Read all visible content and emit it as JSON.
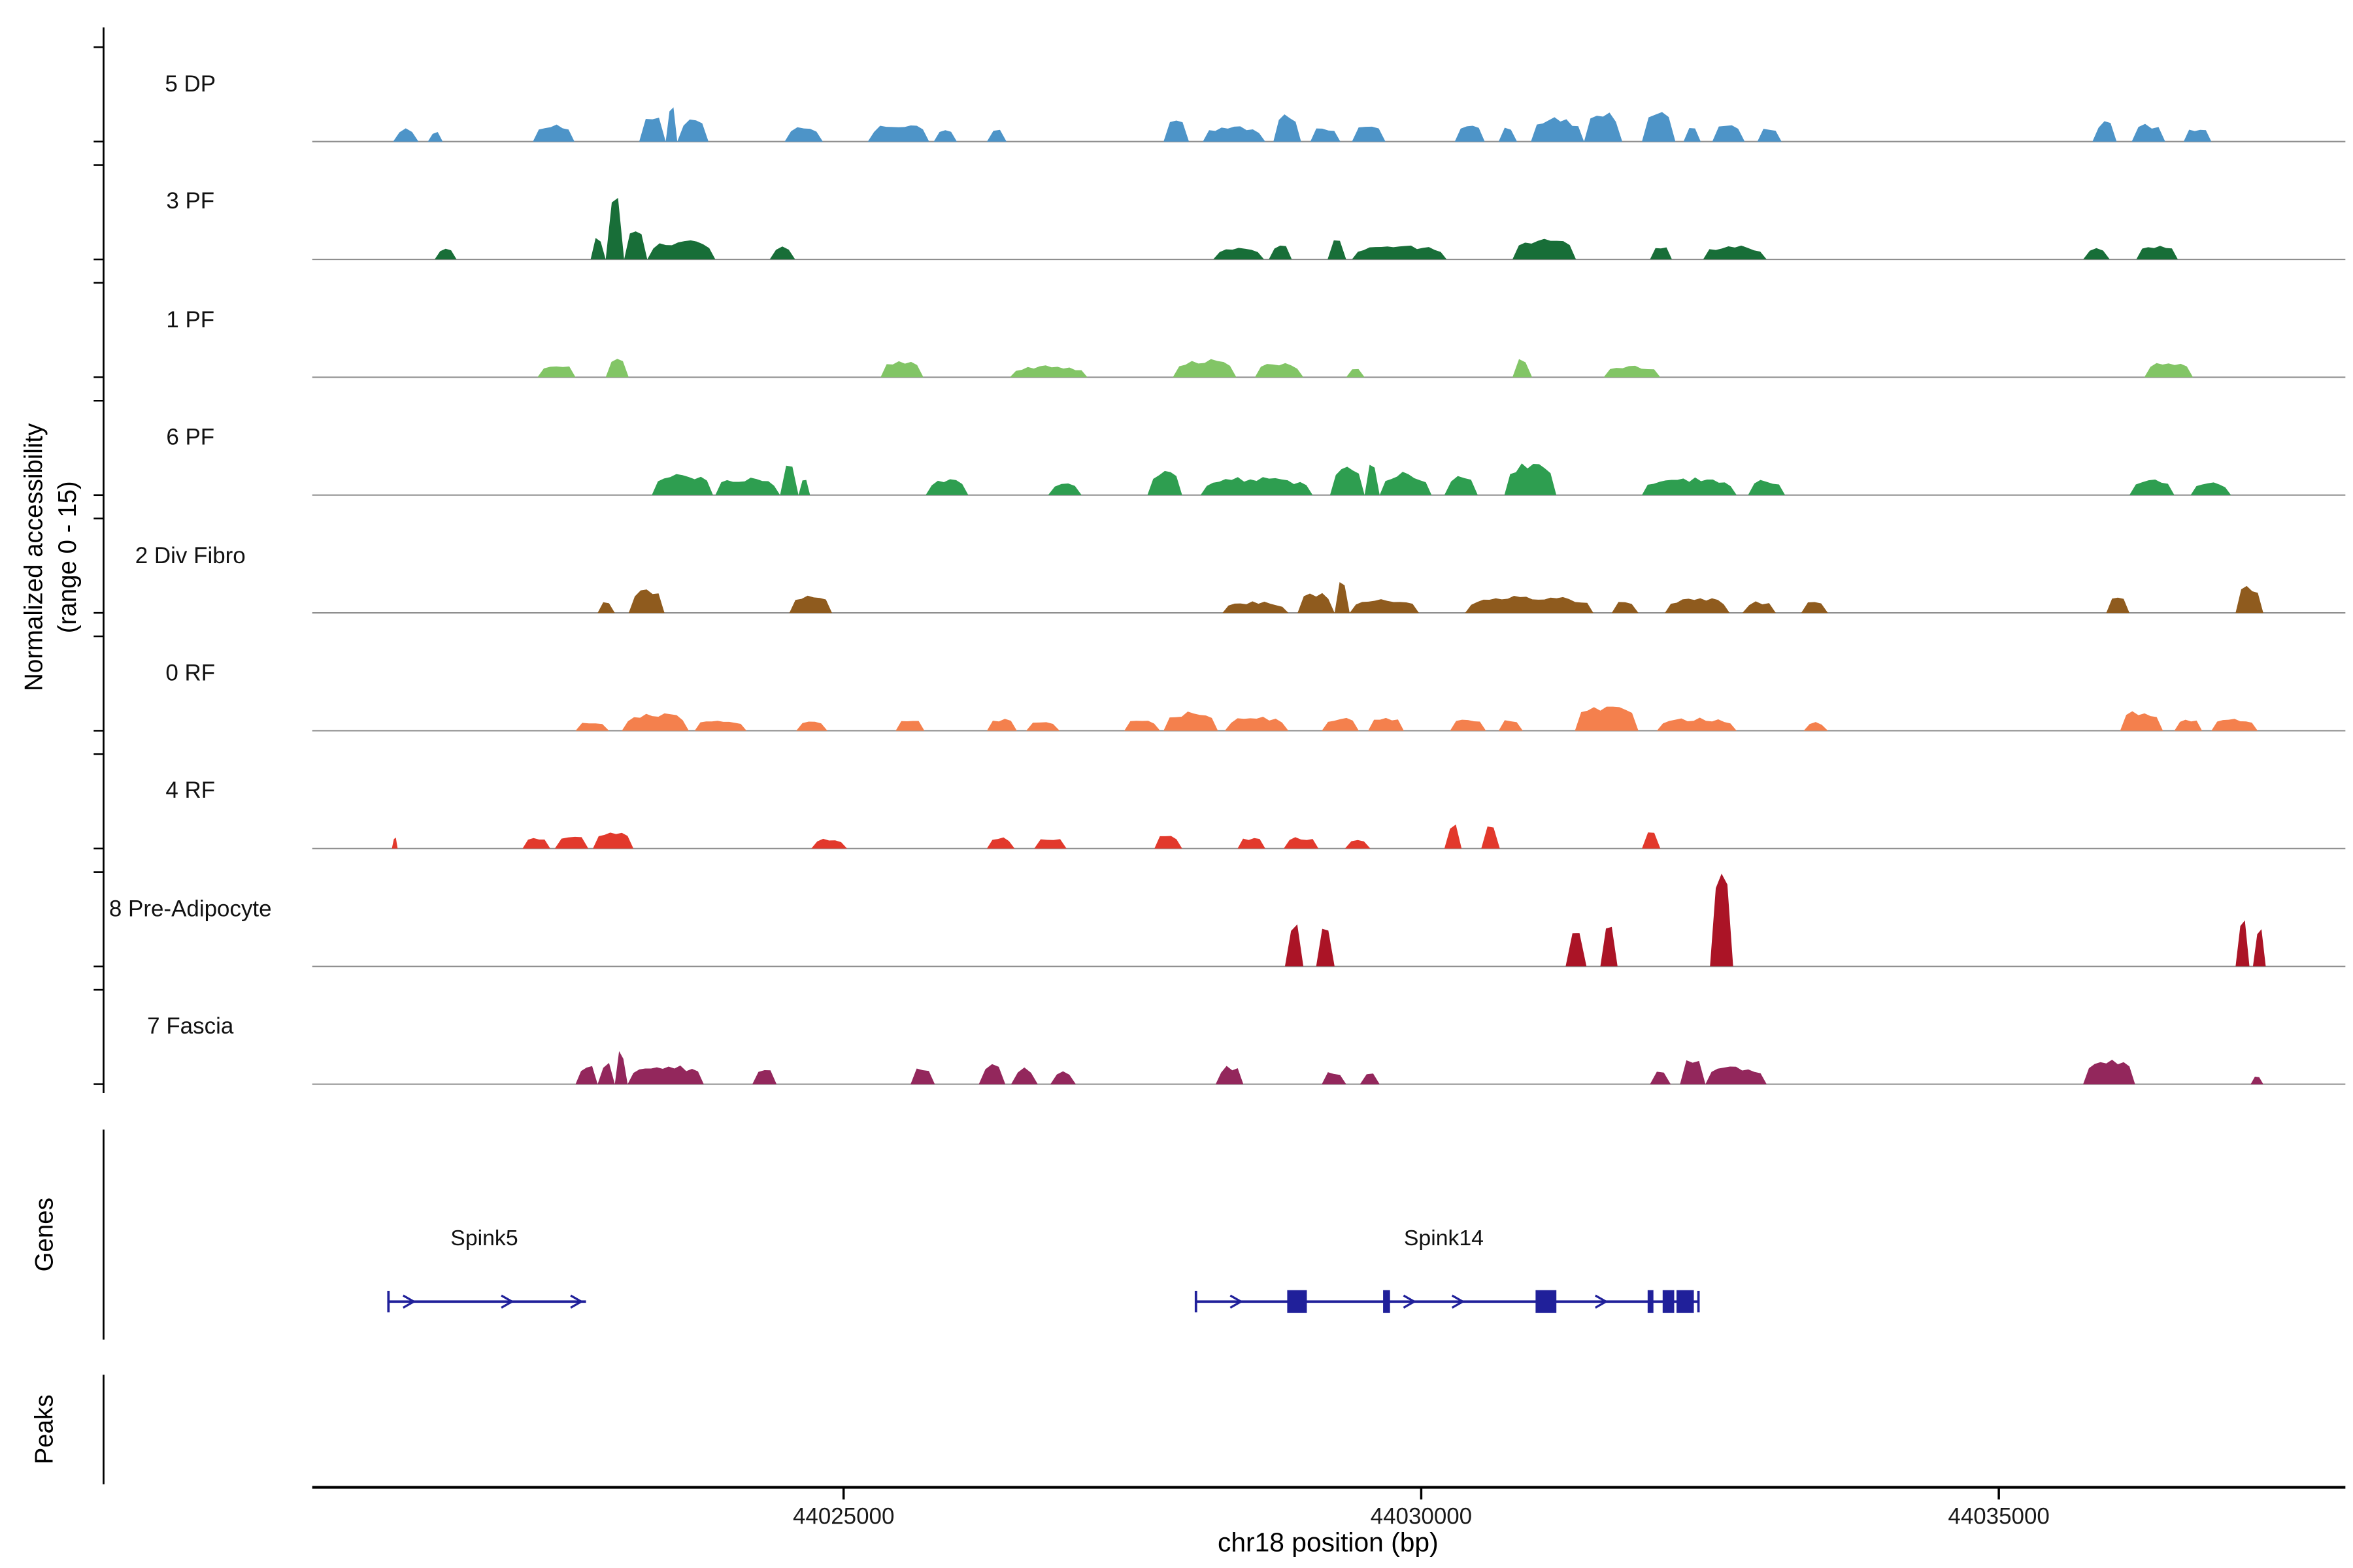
{
  "figure": {
    "y_axis_label_line1": "Normalized accessibility",
    "y_axis_label_line2": "(range 0 - 15)",
    "genes_section_label": "Genes",
    "peaks_section_label": "Peaks",
    "x_axis_title": "chr18 position (bp)"
  },
  "chart_data": {
    "type": "area",
    "title": "",
    "xlabel": "chr18 position (bp)",
    "ylabel": "Normalized accessibility (range 0 - 15)",
    "xlim": [
      44020400,
      44038000
    ],
    "track_ylim": [
      0,
      15
    ],
    "grid": false,
    "x_ticks": [
      {
        "value": 44025000,
        "label": "44025000"
      },
      {
        "value": 44030000,
        "label": "44030000"
      },
      {
        "value": 44035000,
        "label": "44035000"
      }
    ],
    "gene_color": "#20209a",
    "baseline_color": "#8f8f8f",
    "tracks": [
      {
        "name": "5 DP",
        "color": "#4d94c8",
        "segments": [
          [
            44021100,
            44021320,
            2.0
          ],
          [
            44021400,
            44021530,
            1.5
          ],
          [
            44022310,
            44022670,
            2.6
          ],
          [
            44023230,
            44023460,
            4.4
          ],
          [
            44023460,
            44023560,
            5.7
          ],
          [
            44023560,
            44023830,
            3.6
          ],
          [
            44024490,
            44024820,
            2.3
          ],
          [
            44025210,
            44025740,
            2.8
          ],
          [
            44025780,
            44025980,
            1.9
          ],
          [
            44026240,
            44026410,
            2.3
          ],
          [
            44027770,
            44027990,
            3.8
          ],
          [
            44028110,
            44028650,
            2.5
          ],
          [
            44028720,
            44028960,
            4.4
          ],
          [
            44029040,
            44029300,
            2.3
          ],
          [
            44029400,
            44029690,
            2.8
          ],
          [
            44030290,
            44030550,
            2.8
          ],
          [
            44030670,
            44030830,
            2.3
          ],
          [
            44030950,
            44031410,
            3.7
          ],
          [
            44031410,
            44031740,
            4.6
          ],
          [
            44031910,
            44032200,
            4.8
          ],
          [
            44032270,
            44032420,
            2.3
          ],
          [
            44032520,
            44032800,
            2.8
          ],
          [
            44032910,
            44033120,
            2.3
          ],
          [
            44035810,
            44036020,
            3.2
          ],
          [
            44036150,
            44036440,
            2.7
          ],
          [
            44036600,
            44036840,
            2.2
          ]
        ]
      },
      {
        "name": "3 PF",
        "color": "#186e38",
        "segments": [
          [
            44021460,
            44021650,
            1.6
          ],
          [
            44022810,
            44022940,
            3.8
          ],
          [
            44022940,
            44023100,
            9.8
          ],
          [
            44023100,
            44023300,
            4.4
          ],
          [
            44023300,
            44023890,
            3.0
          ],
          [
            44024360,
            44024580,
            2.0
          ],
          [
            44028200,
            44028640,
            1.8
          ],
          [
            44028680,
            44028880,
            2.4
          ],
          [
            44029190,
            44029350,
            3.2
          ],
          [
            44029400,
            44030220,
            2.2
          ],
          [
            44030790,
            44031340,
            3.2
          ],
          [
            44031980,
            44032170,
            2.0
          ],
          [
            44032440,
            44032990,
            2.2
          ],
          [
            44035730,
            44035960,
            2.0
          ],
          [
            44036190,
            44036550,
            2.2
          ]
        ]
      },
      {
        "name": "1 PF",
        "color": "#82c566",
        "segments": [
          [
            44022350,
            44022680,
            2.0
          ],
          [
            44022940,
            44023140,
            3.4
          ],
          [
            44025320,
            44025690,
            2.8
          ],
          [
            44026440,
            44027110,
            1.8
          ],
          [
            44027850,
            44028400,
            2.8
          ],
          [
            44028560,
            44028980,
            2.2
          ],
          [
            44029350,
            44029510,
            1.5
          ],
          [
            44030790,
            44030960,
            3.0
          ],
          [
            44031580,
            44032070,
            1.8
          ],
          [
            44036260,
            44036680,
            2.4
          ]
        ]
      },
      {
        "name": "6 PF",
        "color": "#2e9e50",
        "segments": [
          [
            44023340,
            44023870,
            3.4
          ],
          [
            44023890,
            44024450,
            2.8
          ],
          [
            44024450,
            44024610,
            4.8
          ],
          [
            44024610,
            44024710,
            2.6
          ],
          [
            44025710,
            44026080,
            2.4
          ],
          [
            44026770,
            44027060,
            2.0
          ],
          [
            44027630,
            44027930,
            4.0
          ],
          [
            44028090,
            44029060,
            2.8
          ],
          [
            44029210,
            44029510,
            4.4
          ],
          [
            44029510,
            44029640,
            5.5
          ],
          [
            44029640,
            44030090,
            3.5
          ],
          [
            44030200,
            44030490,
            3.0
          ],
          [
            44030720,
            44031170,
            5.2
          ],
          [
            44031910,
            44032730,
            2.7
          ],
          [
            44032830,
            44033150,
            2.4
          ],
          [
            44036130,
            44036520,
            2.4
          ],
          [
            44036660,
            44037010,
            2.0
          ]
        ]
      },
      {
        "name": "2 Div Fibro",
        "color": "#8f5b1e",
        "segments": [
          [
            44022870,
            44023020,
            1.8
          ],
          [
            44023140,
            44023450,
            3.8
          ],
          [
            44024530,
            44024900,
            2.8
          ],
          [
            44028280,
            44028850,
            1.8
          ],
          [
            44028930,
            44029250,
            3.2
          ],
          [
            44029250,
            44029380,
            5.2
          ],
          [
            44029380,
            44029980,
            2.2
          ],
          [
            44030380,
            44031490,
            2.7
          ],
          [
            44031650,
            44031880,
            2.0
          ],
          [
            44032110,
            44032670,
            2.4
          ],
          [
            44032780,
            44033070,
            1.8
          ],
          [
            44033290,
            44033520,
            1.8
          ],
          [
            44035930,
            44036130,
            2.4
          ],
          [
            44037050,
            44037290,
            4.5
          ]
        ]
      },
      {
        "name": "0 RF",
        "color": "#f4804d",
        "segments": [
          [
            44022680,
            44022970,
            1.5
          ],
          [
            44023080,
            44023660,
            2.8
          ],
          [
            44023710,
            44024160,
            1.8
          ],
          [
            44024590,
            44024860,
            1.6
          ],
          [
            44025450,
            44025700,
            1.8
          ],
          [
            44026240,
            44026500,
            1.8
          ],
          [
            44026580,
            44026870,
            1.6
          ],
          [
            44027430,
            44027740,
            1.8
          ],
          [
            44027770,
            44028240,
            3.0
          ],
          [
            44028300,
            44028850,
            2.2
          ],
          [
            44029140,
            44029460,
            2.0
          ],
          [
            44029540,
            44029850,
            2.2
          ],
          [
            44030250,
            44030560,
            2.0
          ],
          [
            44030670,
            44030880,
            1.8
          ],
          [
            44031330,
            44031880,
            4.0
          ],
          [
            44032040,
            44032730,
            2.0
          ],
          [
            44033310,
            44033520,
            1.3
          ],
          [
            44036050,
            44036420,
            3.2
          ],
          [
            44036520,
            44036760,
            1.8
          ],
          [
            44036840,
            44037240,
            2.0
          ]
        ]
      },
      {
        "name": "4 RF",
        "color": "#e2392c",
        "segments": [
          [
            44021090,
            44021140,
            2.0
          ],
          [
            44022220,
            44022460,
            1.8
          ],
          [
            44022500,
            44022790,
            2.2
          ],
          [
            44022830,
            44023180,
            3.0
          ],
          [
            44024720,
            44025030,
            1.6
          ],
          [
            44026240,
            44026480,
            1.8
          ],
          [
            44026650,
            44026930,
            1.8
          ],
          [
            44027690,
            44027930,
            2.2
          ],
          [
            44028410,
            44028650,
            1.8
          ],
          [
            44028810,
            44029110,
            1.8
          ],
          [
            44029340,
            44029560,
            1.6
          ],
          [
            44030200,
            44030350,
            4.2
          ],
          [
            44030520,
            44030680,
            4.2
          ],
          [
            44031910,
            44032070,
            2.8
          ]
        ]
      },
      {
        "name": "8 Pre-Adipocyte",
        "color": "#ab1426",
        "segments": [
          [
            44028820,
            44028980,
            7.0
          ],
          [
            44029090,
            44029250,
            7.0
          ],
          [
            44031250,
            44031430,
            7.0
          ],
          [
            44031550,
            44031700,
            7.0
          ],
          [
            44032500,
            44032700,
            15.0
          ],
          [
            44037050,
            44037170,
            7.5
          ],
          [
            44037200,
            44037310,
            6.5
          ]
        ]
      },
      {
        "name": "7 Fascia",
        "color": "#93275c",
        "segments": [
          [
            44022680,
            44022870,
            3.0
          ],
          [
            44022870,
            44023020,
            3.4
          ],
          [
            44023020,
            44023130,
            5.5
          ],
          [
            44023130,
            44023790,
            3.0
          ],
          [
            44024210,
            44024420,
            2.6
          ],
          [
            44025580,
            44025790,
            2.6
          ],
          [
            44026170,
            44026400,
            3.0
          ],
          [
            44026450,
            44026680,
            2.6
          ],
          [
            44026790,
            44027010,
            2.0
          ],
          [
            44028220,
            44028460,
            2.8
          ],
          [
            44029140,
            44029350,
            2.0
          ],
          [
            44029470,
            44029640,
            1.8
          ],
          [
            44031980,
            44032160,
            2.0
          ],
          [
            44032240,
            44032460,
            4.2
          ],
          [
            44032460,
            44032990,
            2.8
          ],
          [
            44035730,
            44036180,
            3.8
          ],
          [
            44037180,
            44037290,
            1.4
          ]
        ]
      }
    ],
    "genes": [
      {
        "name": "Spink5",
        "start": 44021060,
        "end": 44022770,
        "strand": "+",
        "exons": [],
        "arrows": [
          44021240,
          44022090,
          44022690
        ],
        "start_bar": true,
        "end_bar": false,
        "label_center": 44021890
      },
      {
        "name": "Spink14",
        "start": 44028050,
        "end": 44032400,
        "strand": "+",
        "exons": [
          [
            44028840,
            44029010
          ],
          [
            44029670,
            44029730
          ],
          [
            44030990,
            44031170
          ],
          [
            44031960,
            44032010
          ],
          [
            44032090,
            44032190
          ],
          [
            44032210,
            44032360
          ]
        ],
        "arrows": [
          44028400,
          44029900,
          44030320,
          44031560
        ],
        "start_bar": true,
        "end_bar": true,
        "label_center": 44030200
      }
    ],
    "peaks": []
  }
}
